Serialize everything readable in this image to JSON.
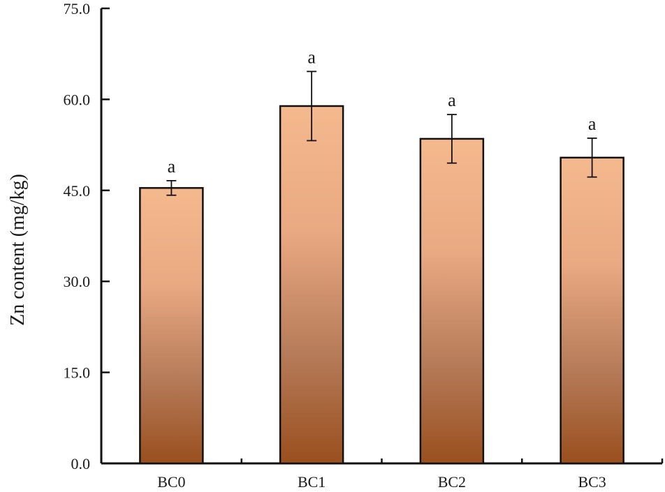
{
  "chart_data": {
    "type": "bar",
    "title": "",
    "xlabel": "",
    "ylabel": "Zn content (mg/kg)",
    "ylim": [
      0,
      75
    ],
    "yticks": [
      "0.0",
      "15.0",
      "30.0",
      "45.0",
      "60.0",
      "75.0"
    ],
    "categories": [
      "BC0",
      "BC1",
      "BC2",
      "BC3"
    ],
    "values": [
      45.4,
      58.9,
      53.5,
      50.4
    ],
    "errors": [
      1.2,
      5.7,
      4.0,
      3.2
    ],
    "significance": [
      "a",
      "a",
      "a",
      "a"
    ],
    "grid": false,
    "legend": "none",
    "colors": {
      "bar_top": "#f5b98e",
      "bar_bottom": "#9a4f1e",
      "outline": "#111111"
    }
  }
}
